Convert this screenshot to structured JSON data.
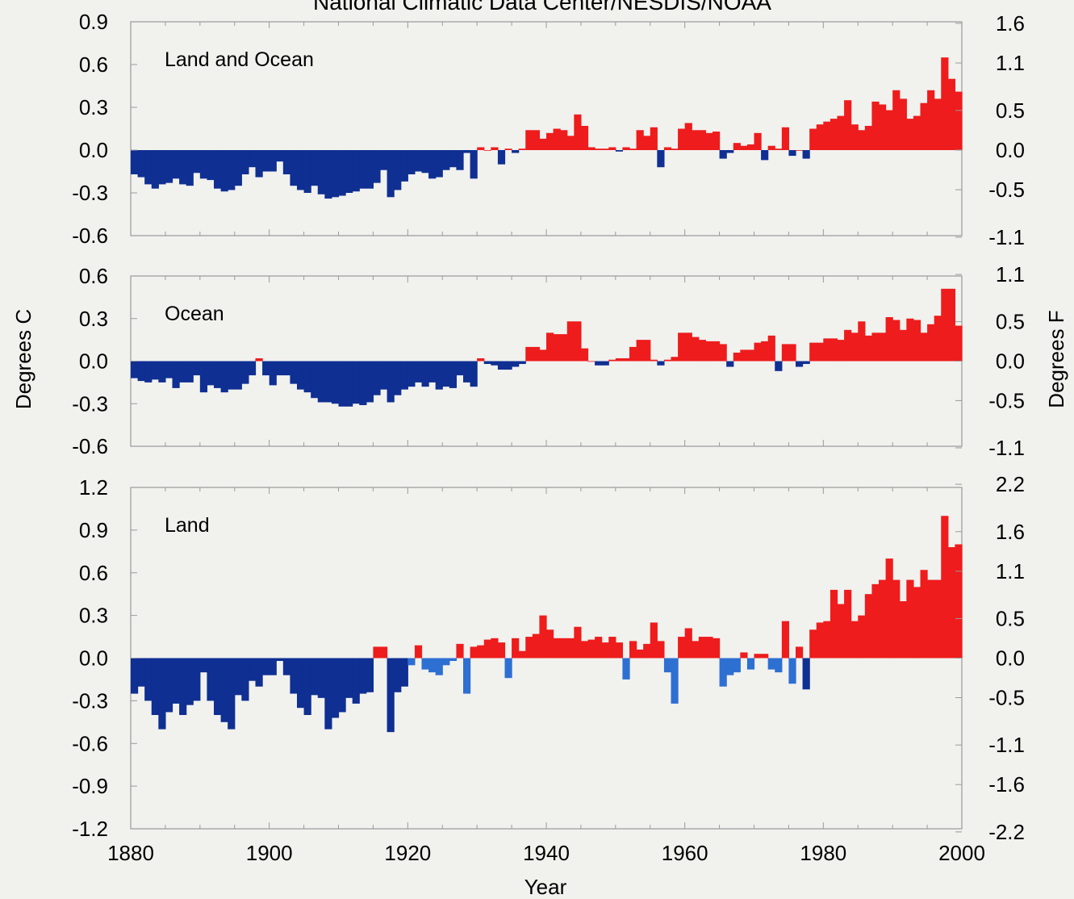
{
  "figure": {
    "title": "National Climatic Data Center/NESDIS/NOAA",
    "ylabel_left": "Degrees C",
    "ylabel_right": "Degrees F",
    "xlabel": "Year",
    "x_ticks": [
      "1880",
      "1900",
      "1920",
      "1940",
      "1960",
      "1980",
      "2000"
    ],
    "colors": {
      "positive": "#ee1c1c",
      "negative": "#0f2f92",
      "negative_light": "#2e6fd2",
      "frame": "#9a9a9a",
      "background": "#f1f1ee"
    }
  },
  "chart_data": [
    {
      "type": "bar",
      "label": "Land and Ocean",
      "x_start": 1880,
      "x_end": 1999,
      "xlim": [
        1880,
        2000
      ],
      "ylim": [
        -0.6,
        0.9
      ],
      "y_ticks": [
        "0.9",
        "0.6",
        "0.3",
        "0.0",
        "-0.3",
        "-0.6"
      ],
      "y_tick_values": [
        0.9,
        0.6,
        0.3,
        0.0,
        -0.3,
        -0.6
      ],
      "y2_ticks": [
        "1.6",
        "1.1",
        "0.5",
        "0.0",
        "-0.5",
        "-1.1"
      ],
      "y2_tick_values": [
        0.889,
        0.611,
        0.278,
        0.0,
        -0.278,
        -0.611
      ],
      "grid": false,
      "values": [
        -0.17,
        -0.19,
        -0.24,
        -0.27,
        -0.24,
        -0.23,
        -0.2,
        -0.24,
        -0.25,
        -0.16,
        -0.2,
        -0.21,
        -0.27,
        -0.29,
        -0.28,
        -0.25,
        -0.17,
        -0.12,
        -0.19,
        -0.15,
        -0.15,
        -0.08,
        -0.17,
        -0.25,
        -0.28,
        -0.3,
        -0.25,
        -0.31,
        -0.34,
        -0.33,
        -0.32,
        -0.3,
        -0.29,
        -0.27,
        -0.27,
        -0.23,
        -0.14,
        -0.33,
        -0.28,
        -0.22,
        -0.17,
        -0.15,
        -0.16,
        -0.2,
        -0.19,
        -0.14,
        -0.12,
        -0.14,
        -0.02,
        -0.2,
        0.02,
        0.0,
        0.02,
        -0.1,
        0.01,
        -0.02,
        0.01,
        0.14,
        0.14,
        0.08,
        0.12,
        0.15,
        0.14,
        0.1,
        0.25,
        0.17,
        0.02,
        0.01,
        0.01,
        0.02,
        -0.01,
        0.02,
        0.01,
        0.14,
        0.1,
        0.16,
        -0.12,
        0.02,
        0.01,
        0.15,
        0.19,
        0.14,
        0.14,
        0.12,
        0.13,
        -0.06,
        -0.02,
        0.05,
        0.03,
        0.04,
        0.12,
        -0.07,
        0.03,
        0.01,
        0.16,
        -0.04,
        0.0,
        -0.06,
        0.15,
        0.18,
        0.2,
        0.22,
        0.24,
        0.35,
        0.18,
        0.14,
        0.17,
        0.34,
        0.32,
        0.28,
        0.42,
        0.36,
        0.22,
        0.24,
        0.33,
        0.42,
        0.36,
        0.65,
        0.5,
        0.41
      ]
    },
    {
      "type": "bar",
      "label": "Ocean",
      "x_start": 1880,
      "x_end": 1999,
      "xlim": [
        1880,
        2000
      ],
      "ylim": [
        -0.6,
        0.6
      ],
      "y_ticks": [
        "0.6",
        "0.3",
        "0.0",
        "-0.3",
        "-0.6"
      ],
      "y_tick_values": [
        0.6,
        0.3,
        0.0,
        -0.3,
        -0.6
      ],
      "y2_ticks": [
        "1.1",
        "0.5",
        "0.0",
        "-0.5",
        "-1.1"
      ],
      "y2_tick_values": [
        0.611,
        0.278,
        0.0,
        -0.278,
        -0.611
      ],
      "grid": false,
      "values": [
        -0.12,
        -0.14,
        -0.15,
        -0.13,
        -0.15,
        -0.12,
        -0.19,
        -0.15,
        -0.15,
        -0.1,
        -0.22,
        -0.17,
        -0.19,
        -0.22,
        -0.2,
        -0.2,
        -0.16,
        -0.1,
        0.02,
        -0.1,
        -0.17,
        -0.1,
        -0.1,
        -0.16,
        -0.2,
        -0.22,
        -0.26,
        -0.29,
        -0.29,
        -0.3,
        -0.32,
        -0.32,
        -0.3,
        -0.31,
        -0.29,
        -0.24,
        -0.2,
        -0.29,
        -0.24,
        -0.2,
        -0.18,
        -0.15,
        -0.18,
        -0.15,
        -0.2,
        -0.18,
        -0.19,
        -0.1,
        -0.15,
        -0.18,
        0.02,
        -0.02,
        -0.03,
        -0.06,
        -0.06,
        -0.04,
        -0.02,
        0.1,
        0.1,
        0.08,
        0.2,
        0.19,
        0.19,
        0.28,
        0.28,
        0.09,
        0.0,
        -0.03,
        -0.03,
        0.01,
        0.02,
        0.02,
        0.1,
        0.15,
        0.15,
        0.01,
        -0.03,
        0.01,
        0.03,
        0.2,
        0.2,
        0.17,
        0.15,
        0.14,
        0.14,
        0.12,
        -0.04,
        0.06,
        0.08,
        0.08,
        0.13,
        0.14,
        0.18,
        -0.07,
        0.12,
        0.12,
        -0.04,
        -0.02,
        0.13,
        0.13,
        0.16,
        0.16,
        0.15,
        0.22,
        0.2,
        0.28,
        0.18,
        0.2,
        0.2,
        0.31,
        0.29,
        0.22,
        0.3,
        0.29,
        0.2,
        0.26,
        0.32,
        0.51,
        0.51,
        0.25
      ]
    },
    {
      "type": "bar",
      "label": "Land",
      "x_start": 1880,
      "x_end": 1999,
      "xlim": [
        1880,
        2000
      ],
      "ylim": [
        -1.2,
        1.2
      ],
      "y_ticks": [
        "1.2",
        "0.9",
        "0.6",
        "0.3",
        "0.0",
        "-0.3",
        "-0.6",
        "-0.9",
        "-1.2"
      ],
      "y_tick_values": [
        1.2,
        0.9,
        0.6,
        0.3,
        0.0,
        -0.3,
        -0.6,
        -0.9,
        -1.2
      ],
      "y2_ticks": [
        "2.2",
        "1.6",
        "1.1",
        "0.5",
        "0.0",
        "-0.5",
        "-1.1",
        "-1.6",
        "-2.2"
      ],
      "y2_tick_values": [
        1.222,
        0.889,
        0.611,
        0.278,
        0.0,
        -0.278,
        -0.611,
        -0.889,
        -1.222
      ],
      "grid": false,
      "values": [
        -0.25,
        -0.2,
        -0.3,
        -0.4,
        -0.5,
        -0.38,
        -0.32,
        -0.4,
        -0.33,
        -0.3,
        -0.1,
        -0.3,
        -0.4,
        -0.45,
        -0.5,
        -0.26,
        -0.3,
        -0.16,
        -0.2,
        -0.12,
        -0.12,
        -0.02,
        -0.12,
        -0.25,
        -0.35,
        -0.4,
        -0.26,
        -0.28,
        -0.5,
        -0.42,
        -0.38,
        -0.28,
        -0.32,
        -0.25,
        -0.24,
        0.08,
        0.08,
        -0.52,
        -0.24,
        -0.2,
        -0.05,
        0.09,
        -0.08,
        -0.1,
        -0.12,
        -0.05,
        -0.02,
        0.1,
        -0.25,
        0.08,
        0.09,
        0.13,
        0.14,
        0.11,
        -0.14,
        0.14,
        0.05,
        0.15,
        0.17,
        0.3,
        0.2,
        0.14,
        0.14,
        0.14,
        0.22,
        0.12,
        0.13,
        0.15,
        0.11,
        0.15,
        0.11,
        -0.15,
        0.12,
        0.06,
        0.1,
        0.25,
        0.12,
        -0.1,
        -0.32,
        0.15,
        0.21,
        0.12,
        0.15,
        0.15,
        0.14,
        -0.2,
        -0.12,
        -0.1,
        0.04,
        -0.08,
        0.03,
        0.03,
        -0.08,
        -0.1,
        0.26,
        -0.18,
        0.08,
        -0.22,
        0.2,
        0.25,
        0.26,
        0.48,
        0.38,
        0.48,
        0.26,
        0.3,
        0.45,
        0.52,
        0.55,
        0.7,
        0.55,
        0.4,
        0.55,
        0.5,
        0.62,
        0.55,
        0.55,
        1.0,
        0.78,
        0.8
      ]
    }
  ]
}
